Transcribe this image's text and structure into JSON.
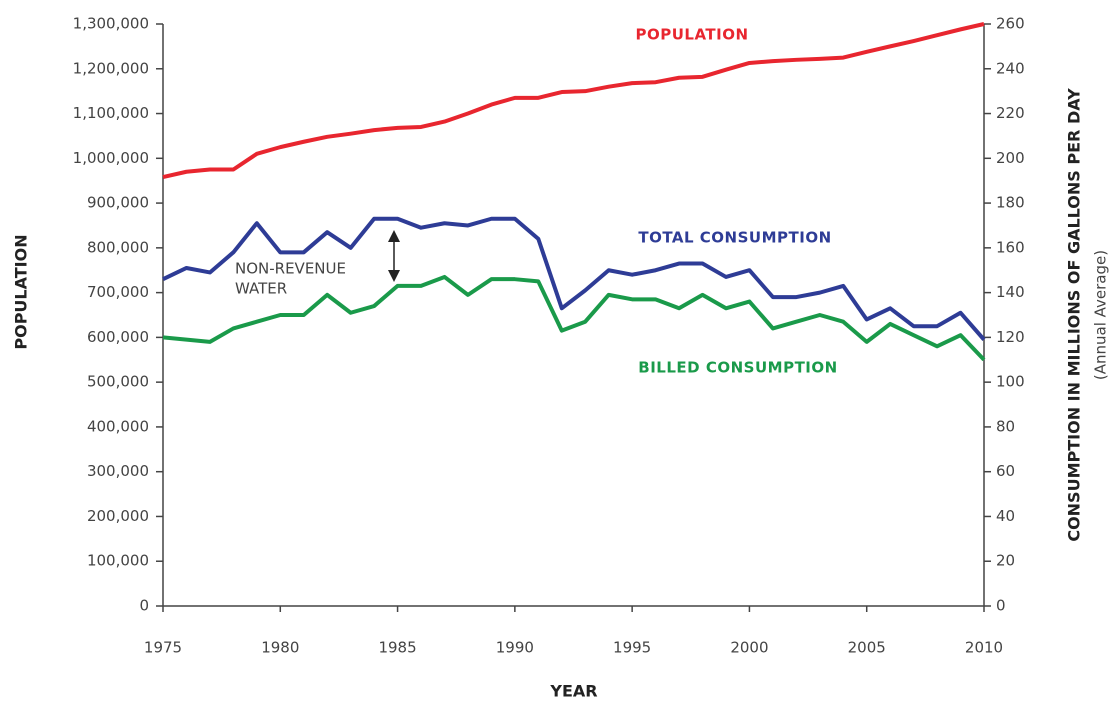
{
  "chart_data": {
    "type": "line",
    "x": [
      1975,
      1976,
      1977,
      1978,
      1979,
      1980,
      1981,
      1982,
      1983,
      1984,
      1985,
      1986,
      1987,
      1988,
      1989,
      1990,
      1991,
      1992,
      1993,
      1994,
      1995,
      1996,
      1997,
      1998,
      1999,
      2000,
      2001,
      2002,
      2003,
      2004,
      2005,
      2006,
      2007,
      2008,
      2009,
      2010
    ],
    "xlim": [
      1975,
      2010
    ],
    "xticks": [
      1975,
      1980,
      1985,
      1990,
      1995,
      2000,
      2005,
      2010
    ],
    "ylim": [
      0,
      1300000
    ],
    "yticks": [
      0,
      {
        "value": 100000,
        "label": "100,000"
      },
      {
        "value": 200000,
        "label": "200,000"
      },
      {
        "value": 300000,
        "label": "300,000"
      },
      {
        "value": 400000,
        "label": "400,000"
      },
      {
        "value": 500000,
        "label": "500,000"
      },
      {
        "value": 600000,
        "label": "600,000"
      },
      {
        "value": 700000,
        "label": "700,000"
      },
      {
        "value": 800000,
        "label": "800,000"
      },
      {
        "value": 900000,
        "label": "900,000"
      },
      {
        "value": 1000000,
        "label": "1,000,000"
      },
      {
        "value": 1100000,
        "label": "1,100,000"
      },
      {
        "value": 1200000,
        "label": "1,200,000"
      },
      {
        "value": 1300000,
        "label": "1,300,000"
      }
    ],
    "y2lim": [
      0,
      260
    ],
    "y2ticks": [
      0,
      20,
      40,
      60,
      80,
      100,
      120,
      140,
      160,
      180,
      200,
      220,
      240,
      260
    ],
    "x_label": "YEAR",
    "y_label": "POPULATION",
    "y2_label": "CONSUMPTION IN MILLIONS OF GALLONS PER DAY",
    "y2_sublabel": "(Annual Average)",
    "annotation": [
      "NON-REVENUE",
      "WATER"
    ],
    "series": [
      {
        "name": "POPULATION",
        "color": "#e8262f",
        "axis": "y",
        "values": [
          958000,
          970000,
          975000,
          975000,
          1010000,
          1025000,
          1037000,
          1048000,
          1055000,
          1063000,
          1068000,
          1070000,
          1082000,
          1100000,
          1120000,
          1135000,
          1135000,
          1148000,
          1150000,
          1160000,
          1168000,
          1170000,
          1180000,
          1182000,
          1198000,
          1213000,
          1217000,
          1220000,
          1222000,
          1225000,
          1238000,
          1250000,
          1262000,
          1275000,
          1288000,
          1300000
        ]
      },
      {
        "name": "TOTAL CONSUMPTION",
        "color": "#2e3c96",
        "axis": "y2",
        "values": [
          146,
          151,
          149,
          158,
          171,
          158,
          158,
          167,
          160,
          173,
          173,
          169,
          171,
          170,
          173,
          173,
          164,
          133,
          141,
          150,
          148,
          150,
          153,
          153,
          147,
          150,
          138,
          138,
          140,
          143,
          128,
          133,
          125,
          125,
          131,
          119
        ]
      },
      {
        "name": "BILLED CONSUMPTION",
        "color": "#1a9a4a",
        "axis": "y2",
        "values": [
          120,
          119,
          118,
          124,
          127,
          130,
          130,
          139,
          131,
          134,
          143,
          143,
          147,
          139,
          146,
          146,
          145,
          123,
          127,
          139,
          137,
          137,
          133,
          139,
          133,
          136,
          124,
          127,
          130,
          127,
          118,
          126,
          121,
          116,
          121,
          110
        ]
      }
    ]
  }
}
